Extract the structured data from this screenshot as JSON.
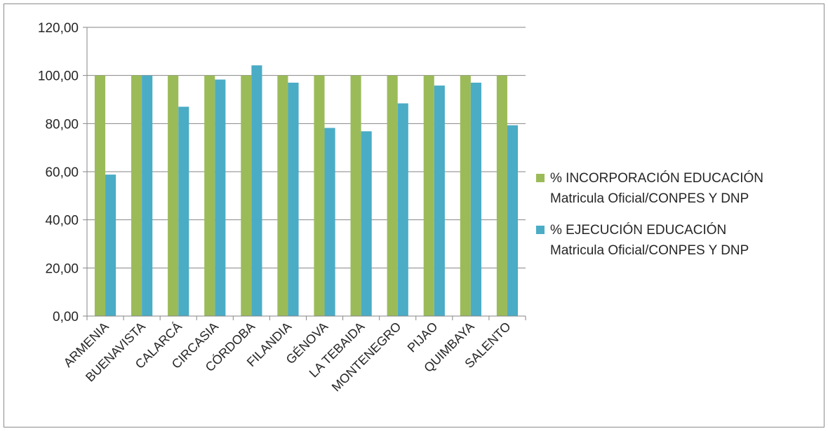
{
  "chart_data": {
    "type": "bar",
    "categories": [
      "ARMENIA",
      "BUENAVISTA",
      "CALARCÁ",
      "CIRCASIA",
      "CÓRDOBA",
      "FILANDIA",
      "GÉNOVA",
      "LA TEBAIDA",
      "MONTENEGRO",
      "PIJAO",
      "QUIMBAYA",
      "SALENTO"
    ],
    "series": [
      {
        "name_lines": [
          "% INCORPORACIÓN EDUCACIÓN",
          "Matricula Oficial/CONPES Y DNP"
        ],
        "color": "#9bbb59",
        "values": [
          100,
          100,
          100,
          100,
          100,
          100,
          100,
          100,
          100,
          100,
          100,
          100
        ]
      },
      {
        "name_lines": [
          "% EJECUCIÓN EDUCACIÓN",
          "Matricula Oficial/CONPES Y DNP"
        ],
        "color": "#4bacc6",
        "values": [
          58.8,
          100,
          87,
          98.3,
          104.2,
          97,
          78.2,
          76.8,
          88.4,
          95.8,
          97,
          79.3
        ]
      }
    ],
    "title": "",
    "xlabel": "",
    "ylabel": "",
    "ylim": [
      0,
      120
    ],
    "yticks": [
      "0,00",
      "20,00",
      "40,00",
      "60,00",
      "80,00",
      "100,00",
      "120,00"
    ],
    "grid": true,
    "legend_position": "right"
  }
}
